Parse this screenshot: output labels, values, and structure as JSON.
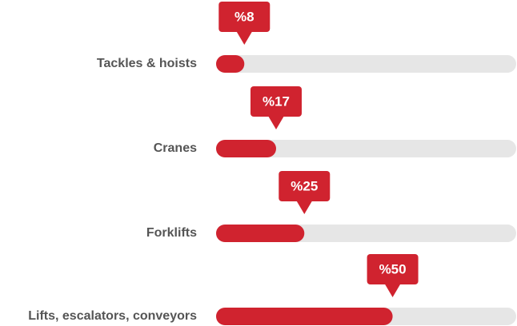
{
  "chart_data": {
    "type": "progress-bar",
    "categories": [
      "Tackles & hoists",
      "Cranes",
      "Forklifts",
      "Lifts, escalators, conveyors"
    ],
    "values": [
      8,
      17,
      25,
      50
    ],
    "value_labels": [
      "%8",
      "%17",
      "%25",
      "%50"
    ],
    "color": "#d0232f",
    "track_color": "#e6e6e6",
    "xlim": [
      0,
      85
    ]
  }
}
